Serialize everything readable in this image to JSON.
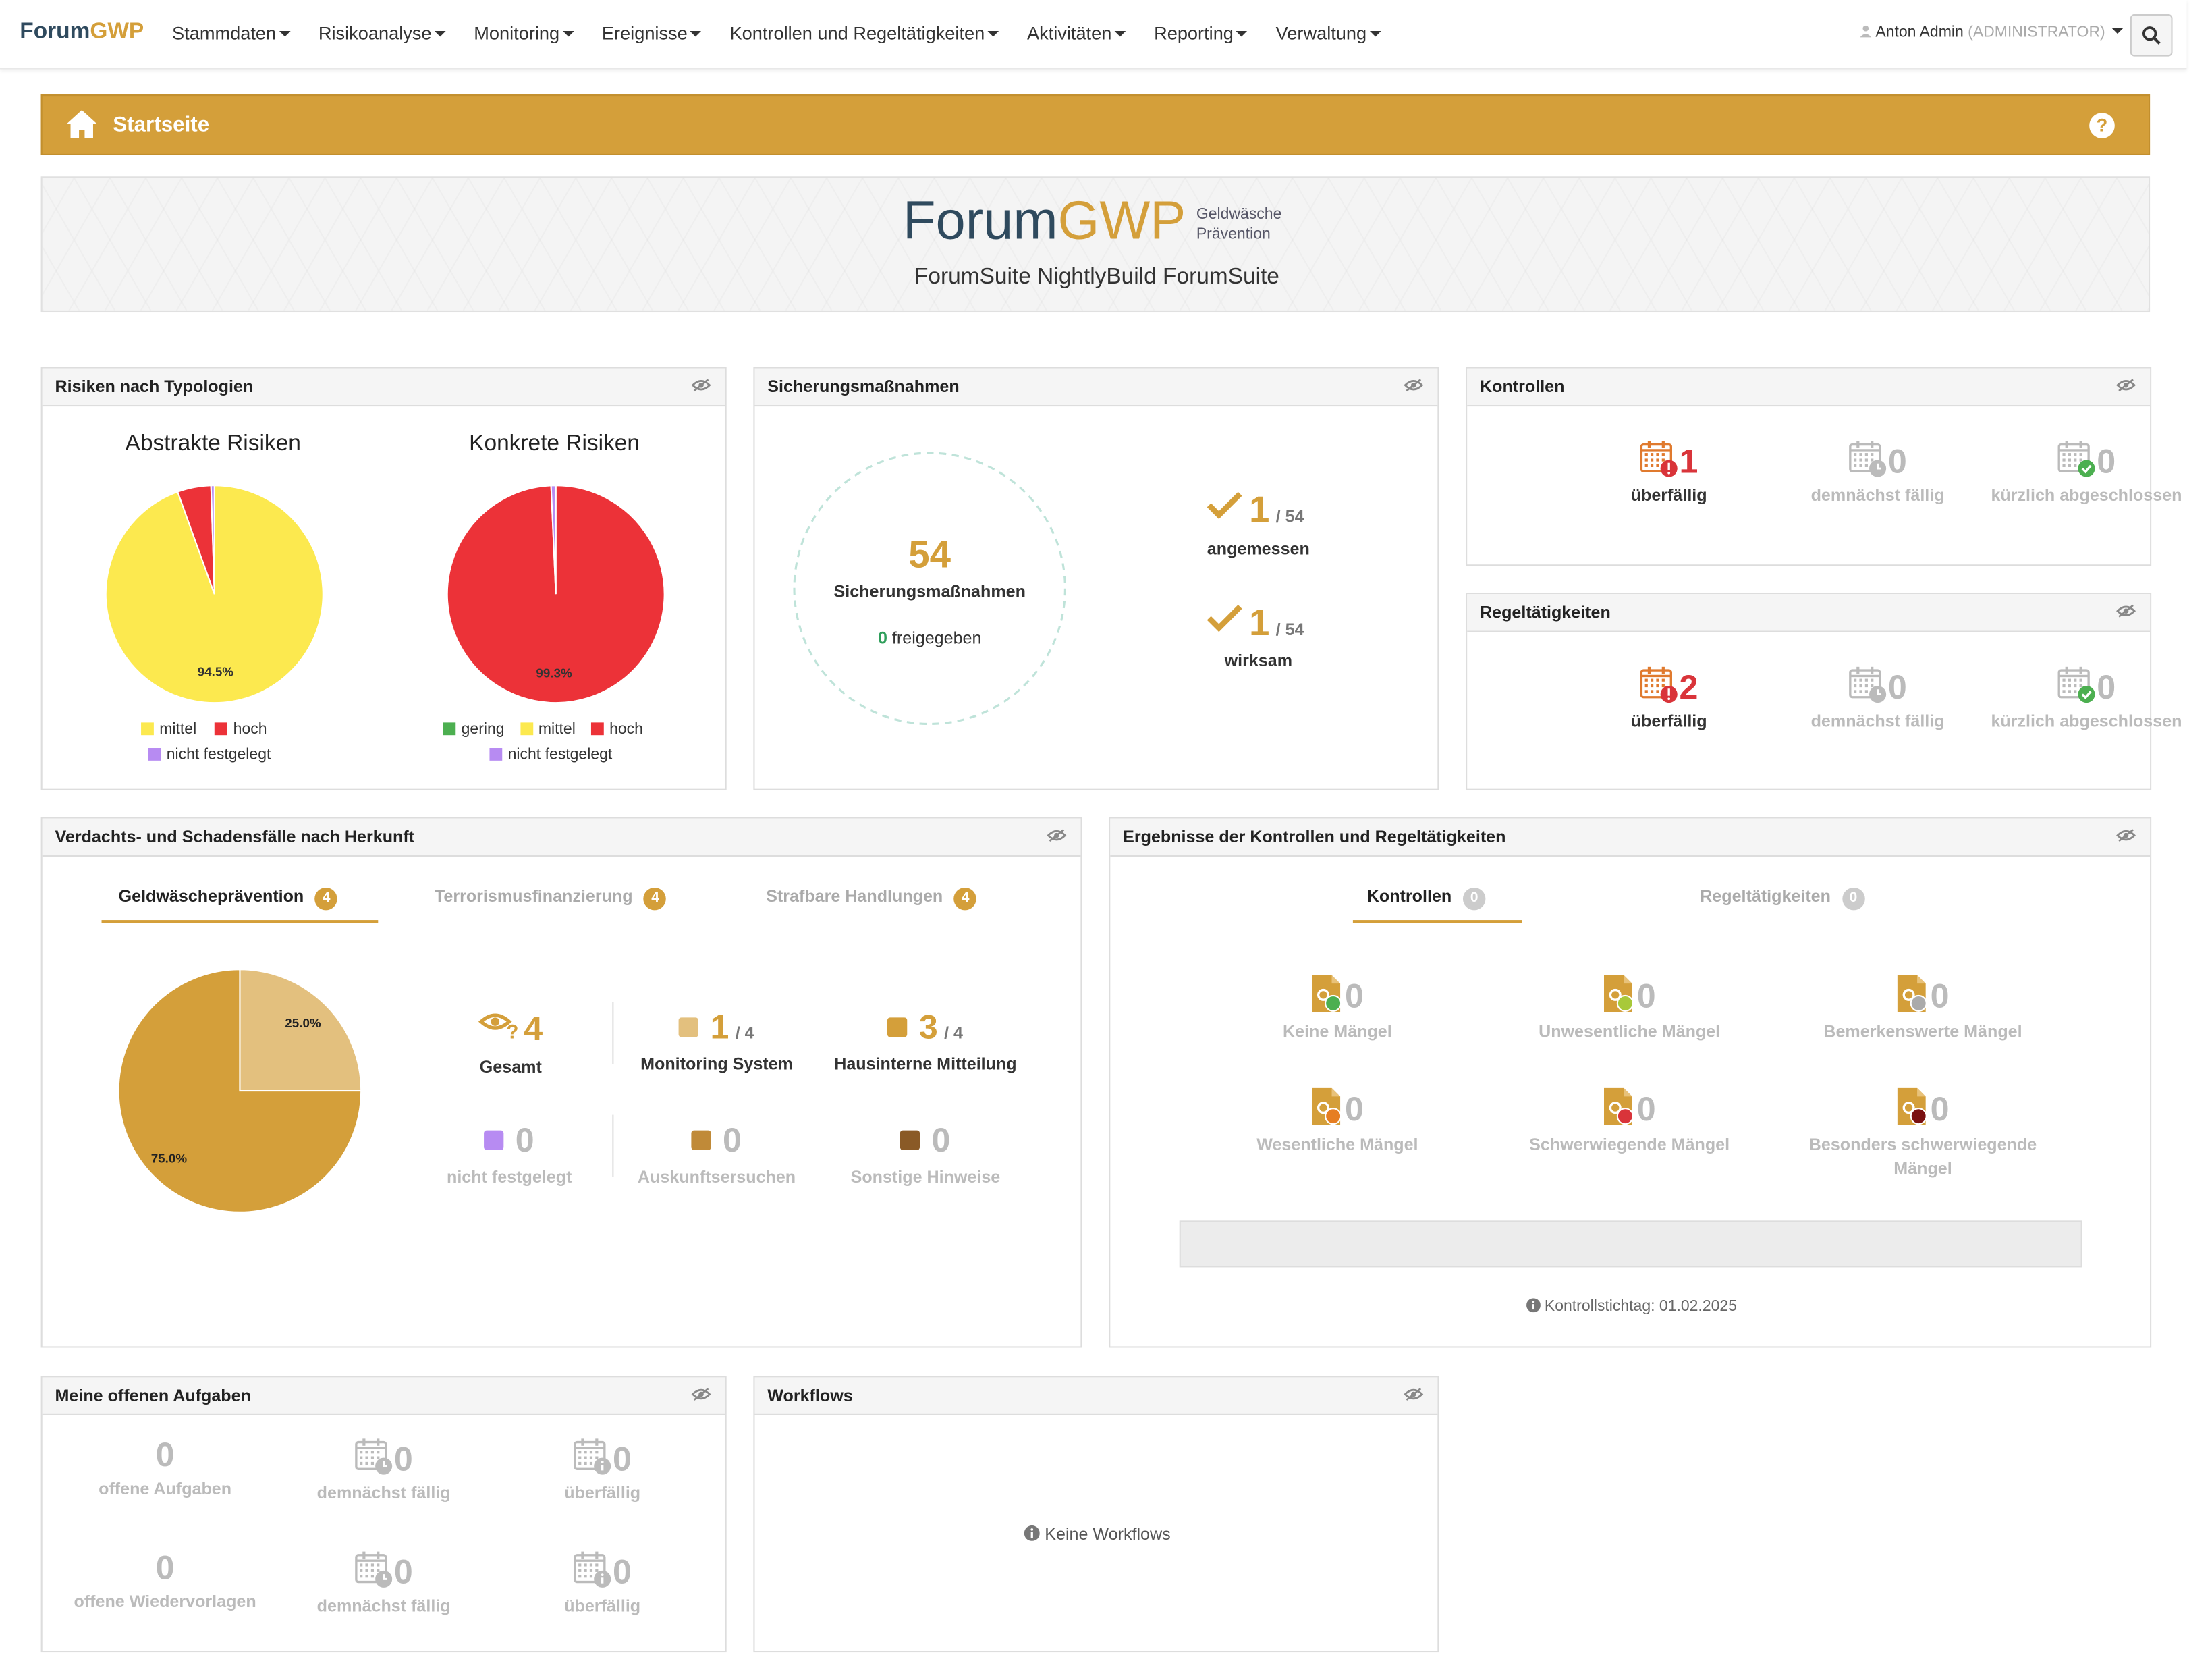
{
  "nav": {
    "brand_1": "Forum",
    "brand_2": "GWP",
    "menu": [
      "Stammdaten",
      "Risikoanalyse",
      "Monitoring",
      "Ereignisse",
      "Kontrollen und Regeltätigkeiten",
      "Aktivitäten",
      "Reporting",
      "Verwaltung"
    ],
    "user_name": "Anton Admin",
    "user_role": "(ADMINISTRATOR)",
    "icons": {
      "user": "user-icon",
      "search": "search-icon"
    }
  },
  "pagebar": {
    "title": "Startseite",
    "help": "?",
    "icons": {
      "home": "home-icon"
    }
  },
  "banner": {
    "logo_1": "Forum",
    "logo_2": "GWP",
    "logo_sub_1": "Geldwäsche",
    "logo_sub_2": "Prävention",
    "suite": "ForumSuite NightlyBuild ForumSuite"
  },
  "colors": {
    "gold": "#d49f3a",
    "yellow": "#fce94f",
    "red": "#ec3238",
    "violet": "#b78bf2",
    "green": "#4caf50"
  },
  "risiken": {
    "title": "Risiken nach Typologien",
    "abstrakt": {
      "title": "Abstrakte Risiken",
      "label": "94.5%",
      "legend": [
        "mittel",
        "hoch",
        "nicht festgelegt"
      ]
    },
    "konkret": {
      "title": "Konkrete Risiken",
      "label": "99.3%",
      "legend": [
        "gering",
        "mittel",
        "hoch",
        "nicht festgelegt"
      ]
    }
  },
  "chart_data": [
    {
      "type": "pie",
      "title": "Abstrakte Risiken",
      "categories": [
        "mittel",
        "hoch",
        "nicht festgelegt"
      ],
      "values": [
        94.5,
        5.0,
        0.5
      ],
      "colors": [
        "#fce94f",
        "#ec3238",
        "#b78bf2"
      ],
      "legend": "bottom"
    },
    {
      "type": "pie",
      "title": "Konkrete Risiken",
      "categories": [
        "gering",
        "mittel",
        "hoch",
        "nicht festgelegt"
      ],
      "values": [
        0,
        0,
        99.3,
        0.7
      ],
      "colors": [
        "#4caf50",
        "#fce94f",
        "#ec3238",
        "#b78bf2"
      ],
      "legend": "bottom"
    },
    {
      "type": "pie",
      "title": "",
      "categories": [
        "Monitoring System",
        "Hausinterne Mitteilung"
      ],
      "values": [
        25.0,
        75.0
      ],
      "colors": [
        "#e3c07e",
        "#d49f3a"
      ],
      "legend": "none"
    }
  ],
  "sicherung": {
    "title": "Sicherungsmaßnahmen",
    "count": "54",
    "label": "Sicherungsmaßnahmen",
    "freigegeben_count": "0",
    "freigegeben_label": "freigegeben",
    "angemessen_num": "1",
    "angemessen_total": "/ 54",
    "angemessen_label": "angemessen",
    "wirksam_num": "1",
    "wirksam_total": "/ 54",
    "wirksam_label": "wirksam",
    "icons": {
      "check": "check-icon"
    }
  },
  "kontrollen": {
    "title": "Kontrollen",
    "items": [
      {
        "num": "1",
        "label": "überfällig",
        "state": "red"
      },
      {
        "num": "0",
        "label": "demnächst fällig",
        "state": "grey"
      },
      {
        "num": "0",
        "label": "kürzlich abgeschlossen",
        "state": "grey"
      }
    ]
  },
  "regel": {
    "title": "Regeltätigkeiten",
    "items": [
      {
        "num": "2",
        "label": "überfällig",
        "state": "red"
      },
      {
        "num": "0",
        "label": "demnächst fällig",
        "state": "grey"
      },
      {
        "num": "0",
        "label": "kürzlich abgeschlossen",
        "state": "grey"
      }
    ]
  },
  "verdacht": {
    "title": "Verdachts- und Schadensfälle nach Herkunft",
    "tabs": [
      {
        "label": "Geldwäscheprävention",
        "count": "4"
      },
      {
        "label": "Terrorismusfinanzierung",
        "count": "4"
      },
      {
        "label": "Strafbare Handlungen",
        "count": "4"
      }
    ],
    "pie_labels": [
      "25.0%",
      "75.0%"
    ],
    "gesamt_num": "4",
    "gesamt_label": "Gesamt",
    "stats": [
      {
        "num": "1",
        "total": "/ 4",
        "label": "Monitoring System",
        "color": "#e3c07e"
      },
      {
        "num": "3",
        "total": "/ 4",
        "label": "Hausinterne Mitteilung",
        "color": "#d49f3a"
      },
      {
        "num": "0",
        "label": "nicht festgelegt",
        "color": "#b78bf2"
      },
      {
        "num": "0",
        "label": "Auskunftsersuchen",
        "color": "#c08a38"
      },
      {
        "num": "0",
        "label": "Sonstige Hinweise",
        "color": "#8a5a26"
      }
    ]
  },
  "ergebnisse": {
    "title": "Ergebnisse der Kontrollen und Regeltätigkeiten",
    "tabs": [
      {
        "label": "Kontrollen",
        "count": "0"
      },
      {
        "label": "Regeltätigkeiten",
        "count": "0"
      }
    ],
    "items": [
      {
        "num": "0",
        "label": "Keine Mängel",
        "mark": "#4caf50"
      },
      {
        "num": "0",
        "label": "Unwesentliche Mängel",
        "mark": "#a8c93a"
      },
      {
        "num": "0",
        "label": "Bemerkenswerte Mängel",
        "mark": "#aaaaaa"
      },
      {
        "num": "0",
        "label": "Wesentliche Mängel",
        "mark": "#e67e22"
      },
      {
        "num": "0",
        "label": "Schwerwiegende Mängel",
        "mark": "#d9343a"
      },
      {
        "num": "0",
        "label": "Besonders schwerwiegende Mängel",
        "mark": "#7a1010"
      }
    ],
    "stichtag": "Kontrollstichtag: 01.02.2025"
  },
  "aufgaben": {
    "title": "Meine offenen Aufgaben",
    "items": [
      {
        "num": "0",
        "label": "offene Aufgaben",
        "icon": false
      },
      {
        "num": "0",
        "label": "demnächst fällig",
        "icon": true
      },
      {
        "num": "0",
        "label": "überfällig",
        "icon": true
      },
      {
        "num": "0",
        "label": "offene Wiedervorlagen",
        "icon": false
      },
      {
        "num": "0",
        "label": "demnächst fällig",
        "icon": true
      },
      {
        "num": "0",
        "label": "überfällig",
        "icon": true
      }
    ]
  },
  "workflows": {
    "title": "Workflows",
    "empty": "Keine Workflows"
  }
}
